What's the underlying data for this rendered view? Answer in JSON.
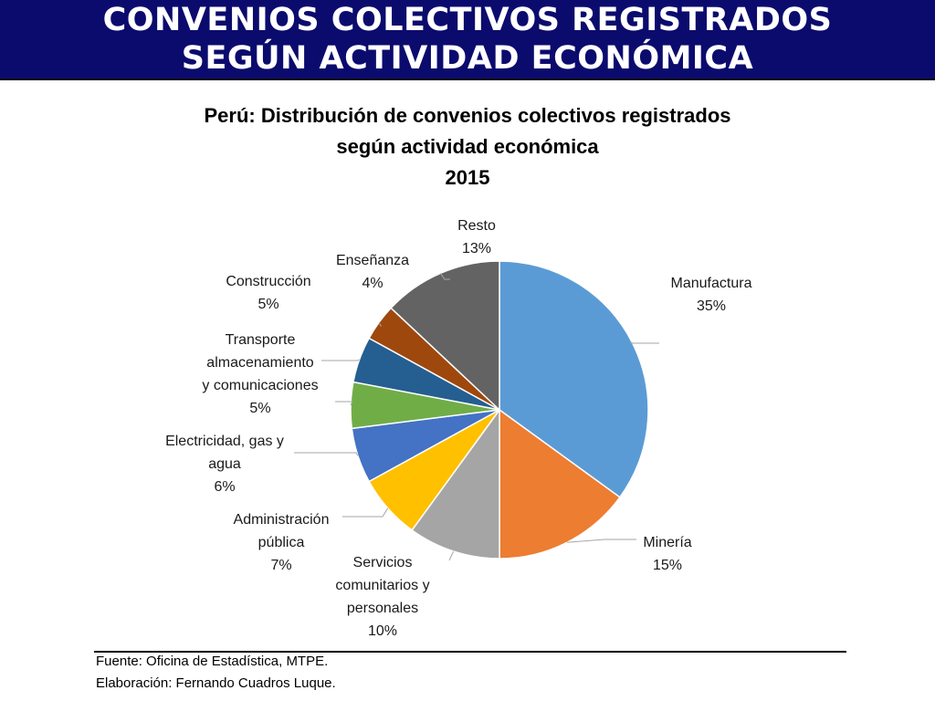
{
  "header": {
    "title_line1": "CONVENIOS COLECTIVOS REGISTRADOS",
    "title_line2": "SEGÚN ACTIVIDAD ECONÓMICA"
  },
  "chart_data": {
    "type": "pie",
    "title_lines": [
      "Perú: Distribución de convenios colectivos registrados",
      "según actividad económica",
      "2015"
    ],
    "slices": [
      {
        "label": [
          "Manufactura"
        ],
        "percent_label": "35%",
        "value": 35,
        "color": "#5b9bd5"
      },
      {
        "label": [
          "Minería"
        ],
        "percent_label": "15%",
        "value": 15,
        "color": "#ed7d31"
      },
      {
        "label": [
          "Servicios",
          "comunitarios y",
          "personales"
        ],
        "percent_label": "10%",
        "value": 10,
        "color": "#a5a5a5"
      },
      {
        "label": [
          "Administración",
          "pública"
        ],
        "percent_label": "7%",
        "value": 7,
        "color": "#ffc000"
      },
      {
        "label": [
          "Electricidad, gas y",
          "agua"
        ],
        "percent_label": "6%",
        "value": 6,
        "color": "#4472c4"
      },
      {
        "label": [
          "Transporte",
          "almacenamiento",
          "y comunicaciones"
        ],
        "percent_label": "5%",
        "value": 5,
        "color": "#70ad47"
      },
      {
        "label": [
          "Construcción"
        ],
        "percent_label": "5%",
        "value": 5,
        "color": "#255e91"
      },
      {
        "label": [
          "Enseñanza"
        ],
        "percent_label": "4%",
        "value": 4,
        "color": "#9e480e"
      },
      {
        "label": [
          "Resto"
        ],
        "percent_label": "13%",
        "value": 13,
        "color": "#636363"
      }
    ]
  },
  "footer": {
    "source": "Fuente: Oficina de Estadística, MTPE.",
    "credit": "Elaboración: Fernando Cuadros Luque."
  }
}
